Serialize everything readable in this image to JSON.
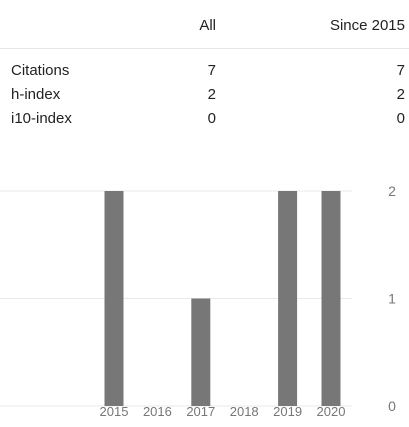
{
  "metrics_table": {
    "columns": [
      "All",
      "Since 2015"
    ],
    "rows": [
      {
        "label": "Citations",
        "all": "7",
        "since": "7"
      },
      {
        "label": "h-index",
        "all": "2",
        "since": "2"
      },
      {
        "label": "i10-index",
        "all": "0",
        "since": "0"
      }
    ]
  },
  "chart_data": {
    "type": "bar",
    "categories": [
      "2015",
      "2016",
      "2017",
      "2018",
      "2019",
      "2020"
    ],
    "values": [
      2,
      0,
      1,
      0,
      2,
      2
    ],
    "y_ticks": [
      "0",
      "1",
      "2"
    ],
    "ylim": [
      0,
      2
    ],
    "grid": true,
    "bar_color": "#777777"
  }
}
